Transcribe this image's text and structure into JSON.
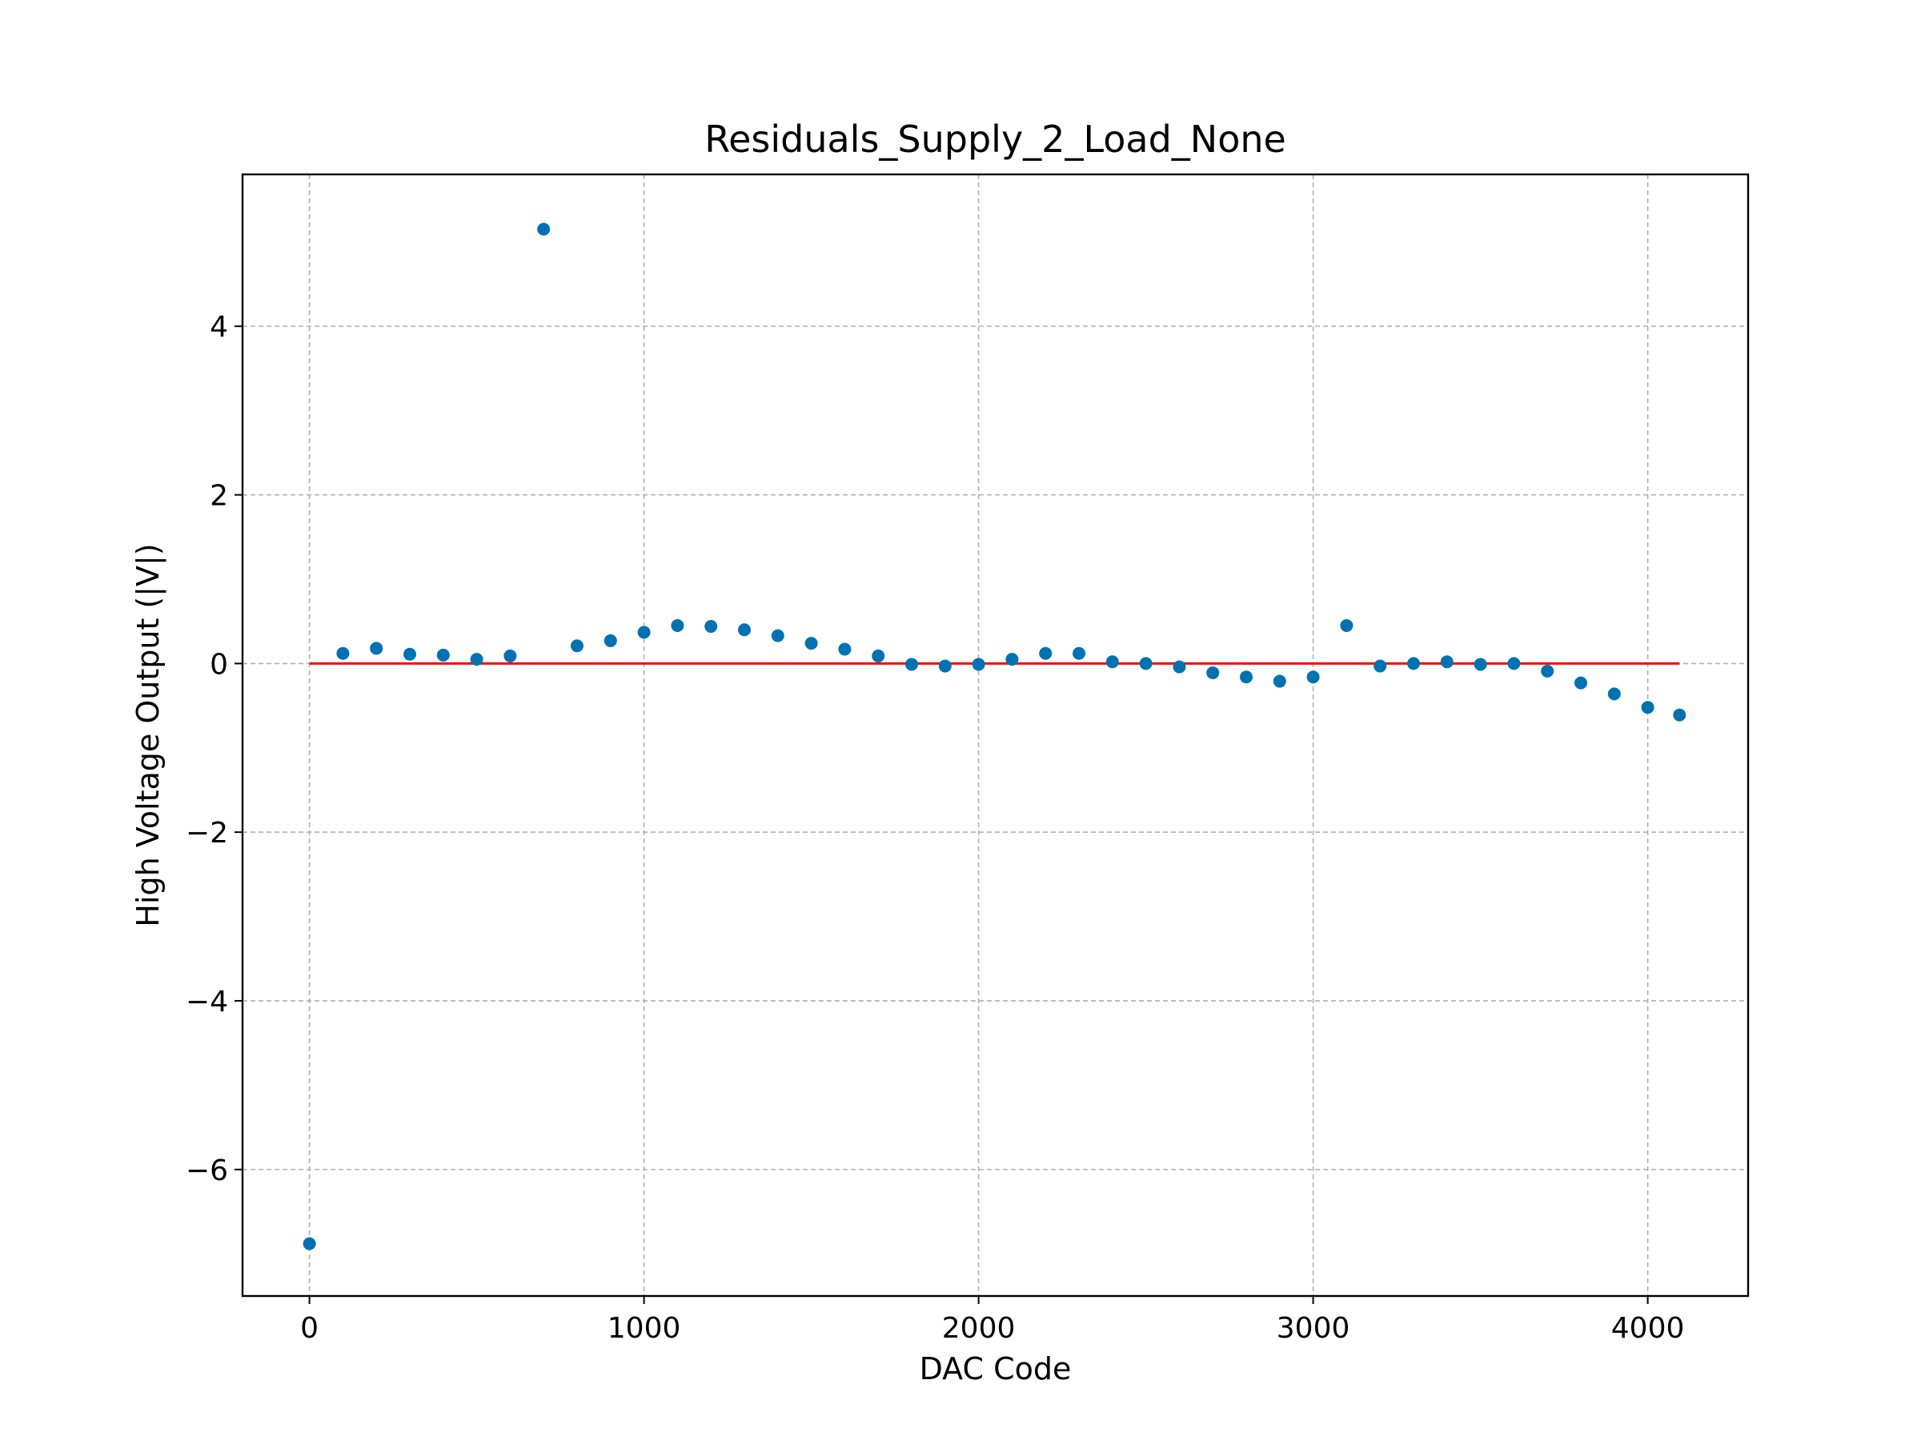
{
  "chart_data": {
    "type": "scatter",
    "title": "Residuals_Supply_2_Load_None",
    "xlabel": "DAC Code",
    "ylabel": "High Voltage Output (|V|)",
    "xlim": [
      -200,
      4300
    ],
    "ylim": [
      -7.5,
      5.8
    ],
    "xticks": [
      0,
      1000,
      2000,
      3000,
      4000
    ],
    "yticks": [
      -6,
      -4,
      -2,
      0,
      2,
      4
    ],
    "grid": true,
    "point_color": "#0072b2",
    "line_color": "#ff0000",
    "reference_line": {
      "x": [
        0,
        4095
      ],
      "y": [
        0,
        0
      ]
    },
    "x": [
      0,
      100,
      200,
      300,
      400,
      500,
      600,
      700,
      800,
      900,
      1000,
      1100,
      1200,
      1300,
      1400,
      1500,
      1600,
      1700,
      1800,
      1900,
      2000,
      2100,
      2200,
      2300,
      2400,
      2500,
      2600,
      2700,
      2800,
      2900,
      3000,
      3100,
      3200,
      3300,
      3400,
      3500,
      3600,
      3700,
      3800,
      3900,
      4000,
      4095
    ],
    "y": [
      -6.88,
      0.12,
      0.18,
      0.11,
      0.1,
      0.05,
      0.09,
      5.15,
      0.21,
      0.27,
      0.37,
      0.45,
      0.44,
      0.4,
      0.33,
      0.24,
      0.17,
      0.09,
      -0.01,
      -0.03,
      -0.01,
      0.05,
      0.12,
      0.12,
      0.02,
      0.0,
      -0.04,
      -0.11,
      -0.16,
      -0.21,
      -0.16,
      0.45,
      -0.03,
      0.0,
      0.02,
      -0.01,
      0.0,
      -0.09,
      -0.23,
      -0.36,
      -0.52,
      -0.61
    ]
  }
}
